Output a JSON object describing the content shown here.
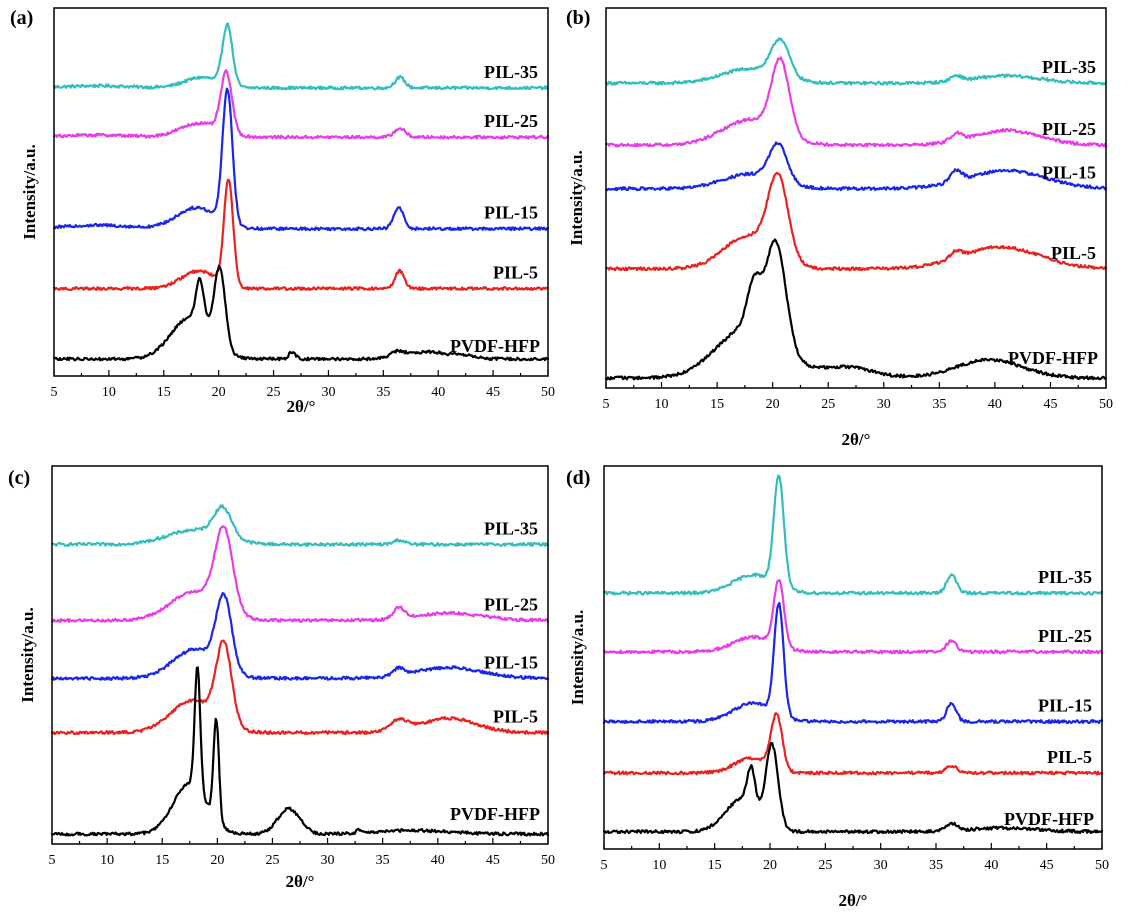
{
  "figure": {
    "colors": {
      "PIL-35": "#33bdbd",
      "PIL-25": "#e83ce8",
      "PIL-15": "#1a26e6",
      "PIL-5": "#e8221e",
      "PVDF-HFP": "#000000"
    }
  },
  "chart_data": [
    {
      "type": "line",
      "panel": "(a)",
      "xlabel": "2θ/°",
      "ylabel": "Intensity/a.u.",
      "xlim": [
        5,
        50
      ],
      "xticks": [
        5,
        10,
        15,
        20,
        25,
        30,
        35,
        40,
        45,
        50
      ],
      "yticks": "none",
      "series": [
        {
          "name": "PIL-35",
          "offset": 0.79,
          "baseline": 0.0,
          "slope": 0.0,
          "peaks": [
            [
              20.8,
              0.17,
              0.45
            ],
            [
              36.5,
              0.03,
              0.45
            ],
            [
              18.5,
              0.03,
              1.6
            ],
            [
              9,
              0.006,
              3
            ]
          ]
        },
        {
          "name": "PIL-25",
          "offset": 0.65,
          "baseline": 0.0,
          "slope": 0.0,
          "peaks": [
            [
              20.7,
              0.17,
              0.5
            ],
            [
              36.5,
              0.025,
              0.5
            ],
            [
              18.3,
              0.04,
              1.8
            ],
            [
              9,
              0.006,
              3
            ]
          ]
        },
        {
          "name": "PIL-15",
          "offset": 0.39,
          "baseline": 0.0,
          "slope": 0.0,
          "peaks": [
            [
              20.8,
              0.38,
              0.45
            ],
            [
              36.4,
              0.06,
              0.45
            ],
            [
              18.0,
              0.06,
              1.8
            ],
            [
              9,
              0.01,
              3
            ]
          ]
        },
        {
          "name": "PIL-5",
          "offset": 0.22,
          "baseline": 0.0,
          "slope": 0.0,
          "peaks": [
            [
              20.9,
              0.3,
              0.42
            ],
            [
              36.5,
              0.05,
              0.42
            ],
            [
              18.2,
              0.05,
              1.6
            ]
          ]
        },
        {
          "name": "PVDF-HFP",
          "offset": 0.0,
          "baseline": 0.02,
          "slope": 0.0,
          "peaks": [
            [
              20.1,
              0.22,
              0.5
            ],
            [
              18.3,
              0.12,
              0.35
            ],
            [
              17.5,
              0.12,
              1.8
            ],
            [
              26.7,
              0.02,
              0.3
            ],
            [
              36.3,
              0.015,
              0.6
            ],
            [
              39,
              0.02,
              2
            ],
            [
              42.5,
              0.008,
              1
            ]
          ]
        }
      ]
    },
    {
      "type": "line",
      "panel": "(b)",
      "xlabel": "2θ/°",
      "ylabel": "Intensity/a.u.",
      "xlim": [
        5,
        50
      ],
      "xticks": [
        5,
        10,
        15,
        20,
        25,
        30,
        35,
        40,
        45,
        50
      ],
      "yticks": "none",
      "series": [
        {
          "name": "PIL-35",
          "offset": 0.81,
          "baseline": 0.0,
          "slope": 0.0,
          "peaks": [
            [
              20.7,
              0.1,
              0.8
            ],
            [
              18,
              0.04,
              2.5
            ],
            [
              36.5,
              0.015,
              0.5
            ],
            [
              41,
              0.02,
              3
            ]
          ]
        },
        {
          "name": "PIL-25",
          "offset": 0.64,
          "baseline": 0.0,
          "slope": 0.0,
          "peaks": [
            [
              20.7,
              0.2,
              0.8
            ],
            [
              18,
              0.07,
              2.5
            ],
            [
              36.5,
              0.02,
              0.5
            ],
            [
              41,
              0.04,
              3
            ]
          ]
        },
        {
          "name": "PIL-15",
          "offset": 0.52,
          "baseline": 0.0,
          "slope": 0.0,
          "peaks": [
            [
              20.5,
              0.1,
              0.8
            ],
            [
              18,
              0.04,
              2.5
            ],
            [
              36.5,
              0.03,
              0.5
            ],
            [
              41,
              0.05,
              3.5
            ]
          ]
        },
        {
          "name": "PIL-5",
          "offset": 0.3,
          "baseline": 0.0,
          "slope": 0.0,
          "peaks": [
            [
              20.5,
              0.22,
              0.9
            ],
            [
              17.8,
              0.09,
              2.2
            ],
            [
              36.5,
              0.02,
              0.5
            ],
            [
              40.5,
              0.06,
              3.5
            ]
          ]
        },
        {
          "name": "PVDF-HFP",
          "offset": 0.0,
          "baseline": 0.0,
          "slope": 0.0,
          "peaks": [
            [
              20.3,
              0.28,
              0.9
            ],
            [
              18.3,
              0.12,
              0.6
            ],
            [
              17.8,
              0.14,
              2.8
            ],
            [
              26.5,
              0.03,
              2.5
            ],
            [
              39.5,
              0.05,
              3
            ]
          ]
        }
      ]
    },
    {
      "type": "line",
      "panel": "(c)",
      "xlabel": "2θ/°",
      "ylabel": "Intensity/a.u.",
      "xlim": [
        5,
        50
      ],
      "xticks": [
        5,
        10,
        15,
        20,
        25,
        30,
        35,
        40,
        45,
        50
      ],
      "yticks": "none",
      "series": [
        {
          "name": "PIL-35",
          "offset": 0.8,
          "baseline": 0.0,
          "slope": 0.0,
          "peaks": [
            [
              20.5,
              0.08,
              0.8
            ],
            [
              18,
              0.04,
              2.5
            ],
            [
              36.5,
              0.012,
              0.5
            ]
          ]
        },
        {
          "name": "PIL-25",
          "offset": 0.59,
          "baseline": 0.0,
          "slope": 0.0,
          "peaks": [
            [
              20.6,
              0.22,
              0.8
            ],
            [
              18,
              0.08,
              2.2
            ],
            [
              36.5,
              0.03,
              0.5
            ],
            [
              41,
              0.02,
              3
            ]
          ]
        },
        {
          "name": "PIL-15",
          "offset": 0.43,
          "baseline": 0.0,
          "slope": 0.0,
          "peaks": [
            [
              20.6,
              0.2,
              0.7
            ],
            [
              18,
              0.08,
              2.0
            ],
            [
              36.5,
              0.02,
              0.5
            ],
            [
              41,
              0.03,
              3
            ]
          ]
        },
        {
          "name": "PIL-5",
          "offset": 0.28,
          "baseline": 0.0,
          "slope": 0.0,
          "peaks": [
            [
              20.6,
              0.22,
              0.7
            ],
            [
              17.8,
              0.09,
              2.0
            ],
            [
              36.5,
              0.03,
              0.8
            ],
            [
              41,
              0.04,
              2.5
            ]
          ]
        },
        {
          "name": "PVDF-HFP",
          "offset": 0.0,
          "baseline": 0.0,
          "slope": 0.0,
          "peaks": [
            [
              18.2,
              0.34,
              0.25
            ],
            [
              19.9,
              0.28,
              0.25
            ],
            [
              17.5,
              0.14,
              1.5
            ],
            [
              26.5,
              0.07,
              1.0
            ],
            [
              32.8,
              0.01,
              0.2
            ],
            [
              38,
              0.01,
              3
            ]
          ]
        }
      ]
    },
    {
      "type": "line",
      "panel": "(d)",
      "xlabel": "2θ/°",
      "ylabel": "Intensity/a.u.",
      "xlim": [
        5,
        50
      ],
      "xticks": [
        5,
        10,
        15,
        20,
        25,
        30,
        35,
        40,
        45,
        50
      ],
      "yticks": "none",
      "series": [
        {
          "name": "PIL-35",
          "offset": 0.67,
          "baseline": 0.0,
          "slope": 0.0,
          "peaks": [
            [
              20.8,
              0.3,
              0.45
            ],
            [
              36.4,
              0.05,
              0.45
            ],
            [
              18.5,
              0.05,
              1.8
            ]
          ]
        },
        {
          "name": "PIL-25",
          "offset": 0.51,
          "baseline": 0.0,
          "slope": 0.0,
          "peaks": [
            [
              20.8,
              0.18,
              0.45
            ],
            [
              36.4,
              0.03,
              0.45
            ],
            [
              18.5,
              0.04,
              1.8
            ]
          ]
        },
        {
          "name": "PIL-15",
          "offset": 0.32,
          "baseline": 0.0,
          "slope": 0.0,
          "peaks": [
            [
              20.8,
              0.3,
              0.42
            ],
            [
              36.4,
              0.05,
              0.42
            ],
            [
              18.5,
              0.05,
              1.8
            ]
          ]
        },
        {
          "name": "PIL-5",
          "offset": 0.18,
          "baseline": 0.0,
          "slope": 0.0,
          "peaks": [
            [
              20.6,
              0.15,
              0.5
            ],
            [
              36.4,
              0.02,
              0.5
            ],
            [
              18.3,
              0.04,
              1.5
            ]
          ]
        },
        {
          "name": "PVDF-HFP",
          "offset": 0.0,
          "baseline": 0.02,
          "slope": 0.0,
          "peaks": [
            [
              20.2,
              0.22,
              0.55
            ],
            [
              18.3,
              0.1,
              0.35
            ],
            [
              17.5,
              0.09,
              1.5
            ],
            [
              36.4,
              0.02,
              0.5
            ],
            [
              41,
              0.01,
              3
            ]
          ]
        }
      ]
    }
  ]
}
